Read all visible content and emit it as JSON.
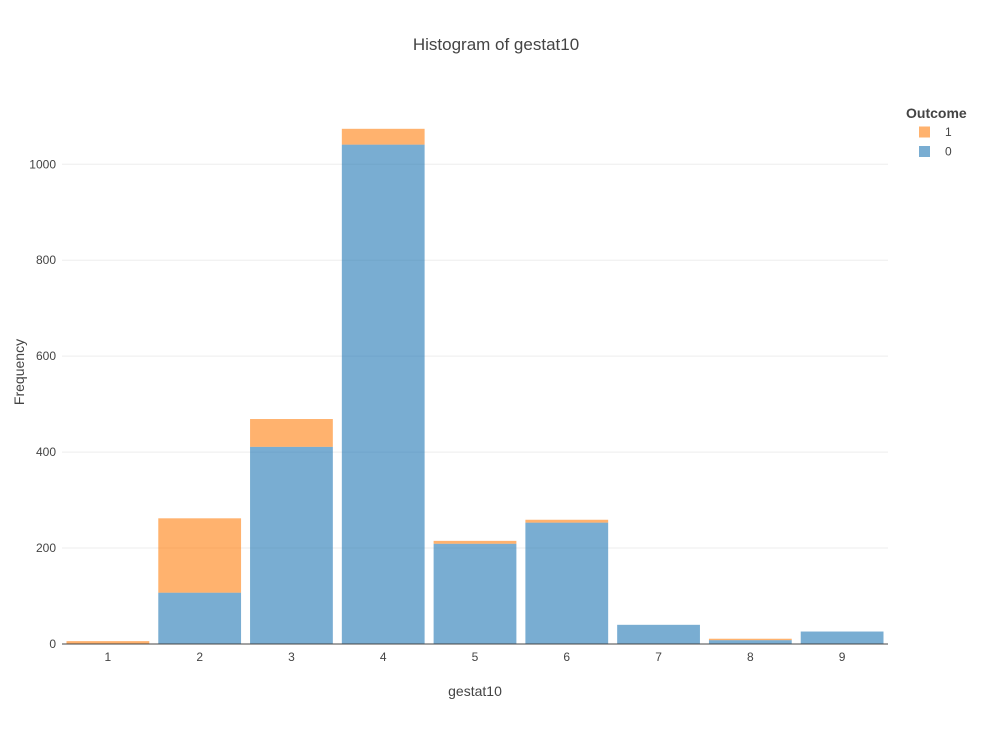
{
  "chart_data": {
    "type": "bar",
    "stacked": true,
    "title": "Histogram of gestat10",
    "xlabel": "gestat10",
    "ylabel": "Frequency",
    "categories": [
      "1",
      "2",
      "3",
      "4",
      "5",
      "6",
      "7",
      "8",
      "9"
    ],
    "ylim": [
      0,
      1084
    ],
    "yticks": [
      0,
      200,
      400,
      600,
      800,
      1000
    ],
    "grid": true,
    "legend": {
      "title": "Outcome",
      "position": "top-right"
    },
    "series": [
      {
        "name": "0",
        "color": "#1f77b4",
        "values": [
          1,
          107,
          411,
          1041,
          209,
          253,
          40,
          8,
          26
        ]
      },
      {
        "name": "1",
        "color": "#ff7f0e",
        "values": [
          5,
          155,
          58,
          33,
          6,
          6,
          0,
          3,
          0
        ]
      }
    ],
    "legend_order": [
      "1",
      "0"
    ]
  }
}
